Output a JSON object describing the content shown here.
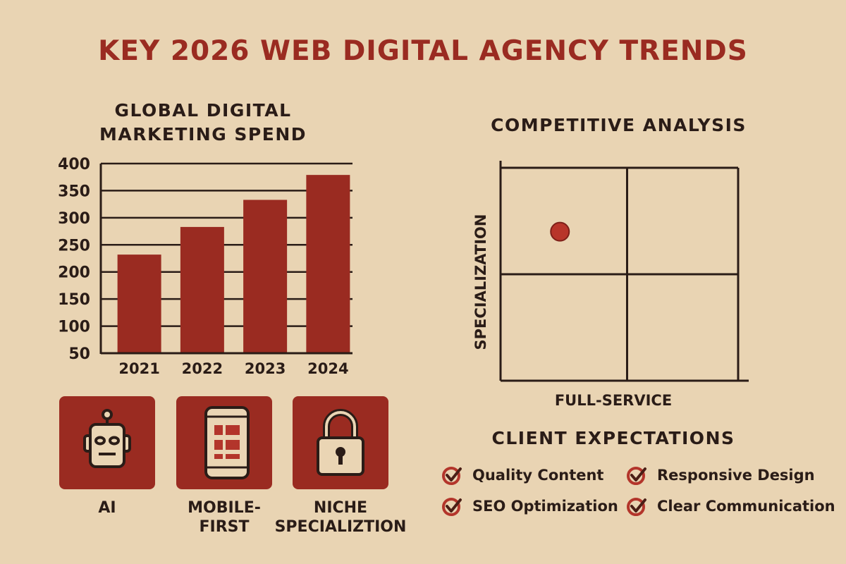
{
  "title": "KEY 2026 WEB DIGITAL AGENCY TRENDS",
  "colors": {
    "background": "#e9d4b3",
    "accent": "#9a2b21",
    "text": "#2a1c17"
  },
  "chart_data": [
    {
      "type": "bar",
      "title_lines": [
        "GLOBAL DIGITAL",
        "MARKETING SPEND"
      ],
      "categories": [
        "2021",
        "2022",
        "2023",
        "2024"
      ],
      "values": [
        232,
        283,
        333,
        379
      ],
      "yticks": [
        "50",
        "100",
        "150",
        "200",
        "250",
        "300",
        "350",
        "400"
      ],
      "ylim": [
        50,
        400
      ],
      "grid": true,
      "bar_color": "#9a2b21"
    },
    {
      "type": "scatter",
      "title": "COMPETITIVE ANALYSIS",
      "xlabel": "FULL-SERVICE",
      "ylabel": "SPECIALIZATION",
      "quadrants": 4,
      "points": [
        {
          "quadrant": "top-left",
          "x": 25,
          "y": 70
        }
      ],
      "xlim": [
        0,
        100
      ],
      "ylim": [
        0,
        100
      ],
      "point_color": "#b8352a"
    }
  ],
  "trends": [
    {
      "icon": "robot-icon",
      "label_lines": [
        "AI"
      ]
    },
    {
      "icon": "mobile-phone-icon",
      "label_lines": [
        "MOBILE-",
        "FIRST"
      ]
    },
    {
      "icon": "padlock-icon",
      "label_lines": [
        "NICHE",
        "SPECIALIZTION"
      ]
    }
  ],
  "client_expectations": {
    "title": "CLIENT EXPECTATIONS",
    "items": [
      "Quality Content",
      "Responsive Design",
      "SEO Optimization",
      "Clear Communication"
    ],
    "icon": "checkmark-circle-icon"
  }
}
